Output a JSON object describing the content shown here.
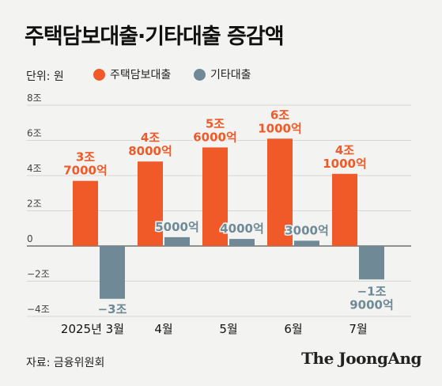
{
  "title": "주택담보대출·기타대출 증감액",
  "unit_label": "단위: 원",
  "source": "자료: 금융위원회",
  "brand": "The JoongAng",
  "colors": {
    "housing": "#f05a28",
    "other": "#6f8a96",
    "grid": "#d6d6d3",
    "axis": "#555555"
  },
  "chart_data": {
    "type": "bar",
    "categories": [
      "2025년 3월",
      "4월",
      "5월",
      "6월",
      "7월"
    ],
    "ylim": [
      -4,
      8
    ],
    "y_ticks": [
      8,
      6,
      4,
      2,
      0,
      -2,
      -4
    ],
    "y_tick_labels": [
      "8조",
      "6조",
      "4조",
      "2조",
      "0",
      "−2조",
      "−4조"
    ],
    "y_unit_note": "조 원",
    "legend_position": "top",
    "grid": true,
    "series": [
      {
        "name": "주택담보대출",
        "values": [
          3.7,
          4.8,
          5.6,
          6.1,
          4.1
        ],
        "labels": [
          [
            "3조",
            "7000억"
          ],
          [
            "4조",
            "8000억"
          ],
          [
            "5조",
            "6000억"
          ],
          [
            "6조",
            "1000억"
          ],
          [
            "4조",
            "1000억"
          ]
        ]
      },
      {
        "name": "기타대출",
        "values": [
          -3.0,
          0.5,
          0.4,
          0.3,
          -1.9
        ],
        "labels": [
          [
            "−3조"
          ],
          [
            "5000억"
          ],
          [
            "4000억"
          ],
          [
            "3000억"
          ],
          [
            "−1조",
            "9000억"
          ]
        ]
      }
    ]
  }
}
